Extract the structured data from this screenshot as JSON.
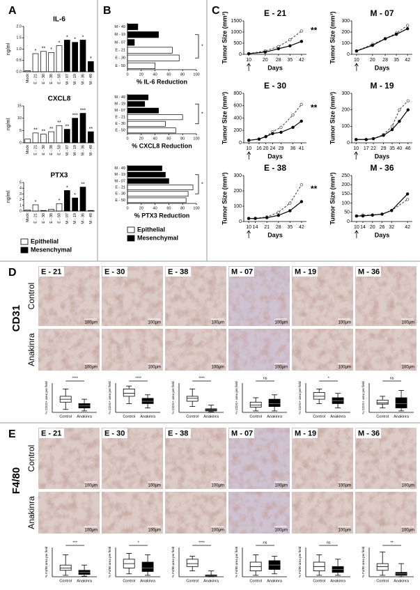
{
  "panel_labels": [
    "A",
    "B",
    "C",
    "D",
    "E"
  ],
  "chart_data": [
    {
      "type": "bar",
      "title": "IL-6",
      "y_label": "ng/ml",
      "categories": [
        "Mock",
        "E - 21",
        "E - 30",
        "E - 38",
        "E - 50",
        "M - 07",
        "M - 19",
        "M - 36",
        "M - 49"
      ],
      "series": [
        {
          "name": "Epithelial",
          "color": "#ffffff",
          "values": [
            0.05,
            0.8,
            0.9,
            0.85,
            1.15,
            null,
            null,
            null,
            null
          ]
        },
        {
          "name": "Mesenchymal",
          "color": "#000000",
          "values": [
            null,
            null,
            null,
            null,
            null,
            1.4,
            1.3,
            1.4,
            0.45
          ]
        }
      ],
      "annotations": [
        null,
        "*",
        "**",
        "*",
        "*",
        "*",
        "*",
        "*",
        "*"
      ],
      "ylim": [
        0,
        2
      ],
      "yticks": [
        {
          "value": 0,
          "label": "0.0"
        },
        0.5,
        {
          "value": 1,
          "label": "1.0"
        },
        1.5,
        {
          "value": 2,
          "label": "2.0"
        }
      ]
    },
    {
      "type": "bar",
      "title": "CXCL8",
      "y_label": "ng/ml",
      "categories": [
        "Mock",
        "E - 21",
        "E - 30",
        "E - 38",
        "E - 50",
        "M - 07",
        "M - 19",
        "M - 36",
        "M - 49"
      ],
      "series": [
        {
          "name": "Epithelial",
          "color": "#ffffff",
          "values": [
            1.5,
            4,
            3.5,
            4.5,
            7,
            null,
            null,
            null,
            null
          ]
        },
        {
          "name": "Mesenchymal",
          "color": "#000000",
          "values": [
            null,
            null,
            null,
            null,
            null,
            5.5,
            10,
            12,
            4.5
          ]
        }
      ],
      "annotations": [
        null,
        "**",
        "**",
        "**",
        "**",
        "**",
        "***",
        "***",
        "**"
      ],
      "ylim": [
        0,
        15
      ],
      "yticks": [
        0,
        5,
        10,
        15
      ]
    },
    {
      "type": "bar",
      "title": "PTX3",
      "y_label": "ng/ml",
      "legend": true,
      "categories": [
        "Mock",
        "E - 21",
        "E - 30",
        "E - 38",
        "E - 50",
        "M - 07",
        "M - 19",
        "M - 36",
        "M - 49"
      ],
      "series": [
        {
          "name": "Epithelial",
          "color": "#ffffff",
          "values": [
            0.2,
            1.1,
            0.1,
            0.3,
            1.3,
            null,
            null,
            null,
            null
          ]
        },
        {
          "name": "Mesenchymal",
          "color": "#000000",
          "values": [
            null,
            null,
            null,
            null,
            null,
            3.6,
            2.3,
            4.2,
            0.1
          ]
        }
      ],
      "annotations": [
        null,
        "*",
        null,
        null,
        "*",
        "*",
        "*",
        "**",
        null
      ],
      "ylim": [
        0,
        5
      ],
      "yticks": [
        0,
        1,
        2,
        3,
        4,
        5
      ]
    },
    {
      "type": "hbar",
      "x_label": "% IL-6 Reduction",
      "categories": [
        "M - 49",
        "M - 19",
        "M - 07",
        "E - 21",
        "E - 30",
        "E - 50"
      ],
      "series": [
        {
          "name": "Epithelial",
          "color": "#ffffff",
          "values": [
            null,
            null,
            null,
            65,
            75,
            40
          ]
        },
        {
          "name": "Mesenchymal",
          "color": "#000000",
          "values": [
            15,
            45,
            10,
            null,
            null,
            null
          ]
        }
      ],
      "annotation": "*",
      "xlim": [
        0,
        100
      ],
      "xticks": [
        0,
        20,
        40,
        60,
        80,
        100
      ]
    },
    {
      "type": "hbar",
      "x_label": "% CXCL8 Reduction",
      "categories": [
        "M - 49",
        "M - 19",
        "M - 07",
        "E - 21",
        "E - 30",
        "E - 50"
      ],
      "series": [
        {
          "name": "Epithelial",
          "color": "#ffffff",
          "values": [
            null,
            null,
            null,
            80,
            55,
            70
          ]
        },
        {
          "name": "Mesenchymal",
          "color": "#000000",
          "values": [
            30,
            25,
            45,
            null,
            null,
            null
          ]
        }
      ],
      "annotation": "*",
      "xlim": [
        0,
        100
      ],
      "xticks": [
        0,
        20,
        40,
        60,
        80,
        100
      ]
    },
    {
      "type": "hbar",
      "x_label": "% PTX3 Reduction",
      "legend": true,
      "categories": [
        "M - 49",
        "M - 19",
        "M - 07",
        "E - 21",
        "E - 30",
        "E - 50"
      ],
      "series": [
        {
          "name": "Epithelial",
          "color": "#ffffff",
          "values": [
            null,
            null,
            null,
            95,
            88,
            85
          ]
        },
        {
          "name": "Mesenchymal",
          "color": "#000000",
          "values": [
            50,
            55,
            60,
            null,
            null,
            null
          ]
        }
      ],
      "annotation": "*",
      "xlim": [
        0,
        100
      ],
      "xticks": [
        0,
        20,
        40,
        60,
        80,
        100
      ]
    },
    {
      "type": "line",
      "title": "E - 21",
      "x_label": "Days",
      "y_label": "Tumor Size (mm³)",
      "annotation": "**",
      "x": [
        10,
        20,
        28,
        35,
        42
      ],
      "xticks": [
        10,
        20,
        28,
        35,
        42
      ],
      "xlim": [
        7,
        45
      ],
      "series": [
        {
          "color": "#555555",
          "dash": true,
          "values": [
            30,
            150,
            350,
            650,
            1050
          ]
        },
        {
          "color": "#000000",
          "dash": false,
          "values": [
            30,
            100,
            250,
            380,
            580
          ]
        }
      ],
      "ylim": [
        0,
        1500
      ],
      "yticks": [
        0,
        500,
        1000,
        1500
      ]
    },
    {
      "type": "line",
      "title": "M - 07",
      "x_label": "Days",
      "y_label": "Tumor Size (mm³)",
      "x": [
        10,
        20,
        28,
        35,
        42
      ],
      "xticks": [
        10,
        20,
        28,
        35,
        42
      ],
      "xlim": [
        7,
        45
      ],
      "series": [
        {
          "color": "#555555",
          "dash": true,
          "values": [
            30,
            90,
            140,
            190,
            260
          ]
        },
        {
          "color": "#000000",
          "dash": false,
          "values": [
            30,
            80,
            140,
            180,
            230
          ]
        }
      ],
      "ylim": [
        0,
        300
      ],
      "yticks": [
        0,
        100,
        200,
        300
      ]
    },
    {
      "type": "line",
      "title": "E - 30",
      "x_label": "Days",
      "y_label": "Tumor Size (mm³)",
      "annotation": "**",
      "x": [
        10,
        16,
        20,
        24,
        29,
        36,
        41
      ],
      "xticks": [
        10,
        16,
        20,
        24,
        29,
        36,
        41
      ],
      "xlim": [
        7,
        44
      ],
      "series": [
        {
          "color": "#555555",
          "dash": true,
          "values": [
            40,
            60,
            100,
            180,
            250,
            450,
            620
          ]
        },
        {
          "color": "#000000",
          "dash": false,
          "values": [
            40,
            60,
            100,
            150,
            170,
            250,
            350
          ]
        }
      ],
      "ylim": [
        0,
        800
      ],
      "yticks": [
        0,
        200,
        400,
        600,
        800
      ]
    },
    {
      "type": "line",
      "title": "M - 19",
      "x_label": "Days",
      "y_label": "Tumor Size (mm³)",
      "x": [
        10,
        17,
        22,
        29,
        35,
        40,
        46
      ],
      "xticks": [
        10,
        17,
        22,
        29,
        35,
        40,
        46
      ],
      "xlim": [
        7,
        49
      ],
      "series": [
        {
          "color": "#555555",
          "dash": true,
          "values": [
            20,
            20,
            25,
            50,
            100,
            200,
            255
          ]
        },
        {
          "color": "#000000",
          "dash": false,
          "values": [
            20,
            20,
            25,
            45,
            80,
            130,
            200
          ]
        }
      ],
      "ylim": [
        0,
        300
      ],
      "yticks": [
        0,
        100,
        200,
        300
      ]
    },
    {
      "type": "line",
      "title": "E - 38",
      "x_label": "Days",
      "y_label": "Tumor Size (mm³)",
      "annotation": "**",
      "x": [
        10,
        14,
        21,
        28,
        35,
        42
      ],
      "xticks": [
        10,
        14,
        21,
        28,
        35,
        42
      ],
      "xlim": [
        7,
        45
      ],
      "series": [
        {
          "color": "#555555",
          "dash": true,
          "values": [
            20,
            20,
            30,
            60,
            120,
            240
          ]
        },
        {
          "color": "#000000",
          "dash": false,
          "values": [
            20,
            20,
            25,
            40,
            70,
            130
          ]
        }
      ],
      "ylim": [
        0,
        300
      ],
      "yticks": [
        0,
        100,
        200,
        300
      ]
    },
    {
      "type": "line",
      "title": "M - 36",
      "x_label": "Days",
      "y_label": "Tumor Size (mm³)",
      "x": [
        10,
        14,
        20,
        26,
        32,
        42
      ],
      "xticks": [
        10,
        14,
        20,
        26,
        32,
        42
      ],
      "xlim": [
        7,
        45
      ],
      "series": [
        {
          "color": "#555555",
          "dash": true,
          "values": [
            30,
            35,
            35,
            40,
            60,
            120
          ]
        },
        {
          "color": "#000000",
          "dash": false,
          "values": [
            30,
            30,
            35,
            40,
            60,
            150
          ]
        }
      ],
      "ylim": [
        0,
        250
      ],
      "yticks": [
        0,
        50,
        100,
        150,
        200,
        250
      ]
    },
    {
      "type": "boxplot",
      "y_label": "% CD31+ area per field",
      "annotation": "****",
      "categories": [
        "Control",
        "Anakinra"
      ],
      "colors": [
        "#ffffff",
        "#000000"
      ],
      "ylim": [
        0,
        100
      ],
      "boxes": [
        {
          "whislo": 10,
          "q1": 35,
          "med": 45,
          "q3": 55,
          "whishi": 80
        },
        {
          "whislo": 5,
          "q1": 15,
          "med": 22,
          "q3": 30,
          "whishi": 45
        }
      ]
    },
    {
      "type": "boxplot",
      "y_label": "% CD31+ area per field",
      "annotation": "****",
      "categories": [
        "Control",
        "Anakinra"
      ],
      "colors": [
        "#ffffff",
        "#000000"
      ],
      "ylim": [
        0,
        100
      ],
      "boxes": [
        {
          "whislo": 30,
          "q1": 55,
          "med": 65,
          "q3": 80,
          "whishi": 90
        },
        {
          "whislo": 15,
          "q1": 30,
          "med": 38,
          "q3": 48,
          "whishi": 60
        }
      ]
    },
    {
      "type": "boxplot",
      "y_label": "% CD31+ area per field",
      "annotation": "****",
      "categories": [
        "Control",
        "Anakinra"
      ],
      "colors": [
        "#ffffff",
        "#000000"
      ],
      "ylim": [
        0,
        100
      ],
      "boxes": [
        {
          "whislo": 20,
          "q1": 38,
          "med": 48,
          "q3": 55,
          "whishi": 80
        },
        {
          "whislo": 2,
          "q1": 5,
          "med": 8,
          "q3": 12,
          "whishi": 25
        }
      ]
    },
    {
      "type": "boxplot",
      "y_label": "% CD31+ area per field",
      "annotation": "ns",
      "categories": [
        "Control",
        "Anakinra"
      ],
      "colors": [
        "#ffffff",
        "#000000"
      ],
      "ylim": [
        0,
        100
      ],
      "boxes": [
        {
          "whislo": 5,
          "q1": 18,
          "med": 25,
          "q3": 35,
          "whishi": 50
        },
        {
          "whislo": 5,
          "q1": 20,
          "med": 30,
          "q3": 45,
          "whishi": 60
        }
      ]
    },
    {
      "type": "boxplot",
      "y_label": "% CD31+ area per field",
      "annotation": "*",
      "categories": [
        "Control",
        "Anakinra"
      ],
      "colors": [
        "#ffffff",
        "#000000"
      ],
      "ylim": [
        0,
        100
      ],
      "boxes": [
        {
          "whislo": 30,
          "q1": 45,
          "med": 55,
          "q3": 68,
          "whishi": 80
        },
        {
          "whislo": 15,
          "q1": 30,
          "med": 40,
          "q3": 50,
          "whishi": 65
        }
      ]
    },
    {
      "type": "boxplot",
      "y_label": "% CD31+ area per field",
      "annotation": "ns",
      "categories": [
        "Control",
        "Anakinra"
      ],
      "colors": [
        "#ffffff",
        "#000000"
      ],
      "ylim": [
        0,
        100
      ],
      "boxes": [
        {
          "whislo": 15,
          "q1": 28,
          "med": 32,
          "q3": 42,
          "whishi": 55
        },
        {
          "whislo": 5,
          "q1": 15,
          "med": 30,
          "q3": 50,
          "whishi": 75
        }
      ]
    },
    {
      "type": "boxplot",
      "y_label": "% F4/80 area per field",
      "annotation": "***",
      "categories": [
        "Control",
        "Anakinra"
      ],
      "colors": [
        "#ffffff",
        "#000000"
      ],
      "ylim": [
        0,
        100
      ],
      "boxes": [
        {
          "whislo": 5,
          "q1": 22,
          "med": 30,
          "q3": 40,
          "whishi": 75
        },
        {
          "whislo": 2,
          "q1": 8,
          "med": 15,
          "q3": 22,
          "whishi": 40
        }
      ]
    },
    {
      "type": "boxplot",
      "y_label": "% F4/80 area per field",
      "annotation": "*",
      "categories": [
        "Control",
        "Anakinra"
      ],
      "colors": [
        "#ffffff",
        "#000000"
      ],
      "ylim": [
        0,
        100
      ],
      "boxes": [
        {
          "whislo": 10,
          "q1": 30,
          "med": 45,
          "q3": 60,
          "whishi": 80
        },
        {
          "whislo": 5,
          "q1": 18,
          "med": 30,
          "q3": 50,
          "whishi": 75
        }
      ]
    },
    {
      "type": "boxplot",
      "y_label": "% F4/80 area per field",
      "annotation": "****",
      "categories": [
        "Control",
        "Anakinra"
      ],
      "colors": [
        "#ffffff",
        "#000000"
      ],
      "ylim": [
        0,
        100
      ],
      "boxes": [
        {
          "whislo": 20,
          "q1": 35,
          "med": 45,
          "q3": 60,
          "whishi": 70
        },
        {
          "whislo": 0,
          "q1": 2,
          "med": 3,
          "q3": 6,
          "whishi": 20
        }
      ]
    },
    {
      "type": "boxplot",
      "y_label": "% F4/80 area per field",
      "annotation": "ns",
      "categories": [
        "Control",
        "Anakinra"
      ],
      "colors": [
        "#ffffff",
        "#000000"
      ],
      "ylim": [
        0,
        100
      ],
      "boxes": [
        {
          "whislo": 5,
          "q1": 20,
          "med": 35,
          "q3": 50,
          "whishi": 75
        },
        {
          "whislo": 10,
          "q1": 25,
          "med": 40,
          "q3": 55,
          "whishi": 70
        }
      ]
    },
    {
      "type": "boxplot",
      "y_label": "% F4/80 area per field",
      "annotation": "ns",
      "categories": [
        "Control",
        "Anakinra"
      ],
      "colors": [
        "#ffffff",
        "#000000"
      ],
      "ylim": [
        0,
        100
      ],
      "boxes": [
        {
          "whislo": 5,
          "q1": 20,
          "med": 35,
          "q3": 50,
          "whishi": 75
        },
        {
          "whislo": 5,
          "q1": 15,
          "med": 25,
          "q3": 35,
          "whishi": 60
        }
      ]
    },
    {
      "type": "boxplot",
      "y_label": "% F4/80 area per field",
      "annotation": "**",
      "categories": [
        "Control",
        "Anakinra"
      ],
      "colors": [
        "#ffffff",
        "#000000"
      ],
      "ylim": [
        0,
        100
      ],
      "boxes": [
        {
          "whislo": 5,
          "q1": 22,
          "med": 35,
          "q3": 45,
          "whishi": 85
        },
        {
          "whislo": 0,
          "q1": 5,
          "med": 10,
          "q3": 15,
          "whishi": 45
        }
      ]
    }
  ],
  "micrograph_panels": [
    {
      "stain": "CD31",
      "rows": [
        "Control",
        "Anakinra"
      ],
      "columns": [
        "E - 21",
        "E - 30",
        "E - 38",
        "M - 07",
        "M - 19",
        "M - 36"
      ],
      "scale_bar": "100μm"
    },
    {
      "stain": "F4/80",
      "rows": [
        "Control",
        "Anakinra"
      ],
      "columns": [
        "E - 21",
        "E - 30",
        "E - 38",
        "M - 07",
        "M - 19",
        "M - 36"
      ],
      "scale_bar": "100μm"
    }
  ]
}
